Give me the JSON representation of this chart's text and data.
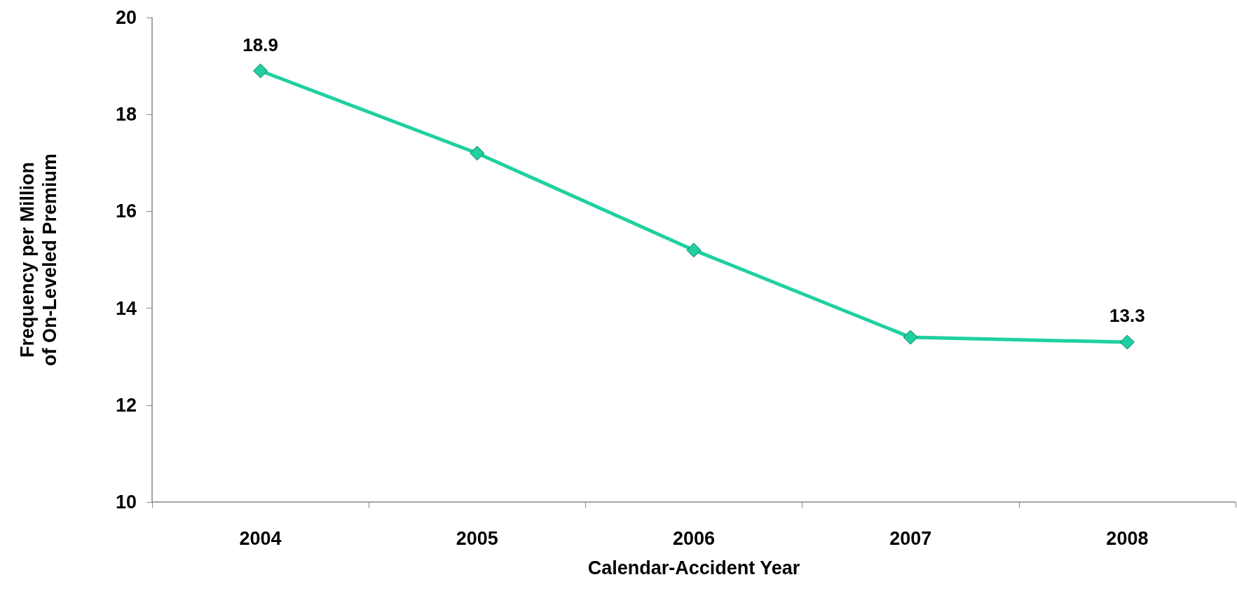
{
  "chart_data": {
    "type": "line",
    "xlabel": "Calendar-Accident Year",
    "ylabel": "Frequency per Million\nof On-Leveled Premium",
    "categories": [
      "2004",
      "2005",
      "2006",
      "2007",
      "2008"
    ],
    "series": [
      {
        "color": "#1fd0a0",
        "values": [
          18.9,
          17.2,
          15.2,
          13.4,
          13.3
        ],
        "value_labels": [
          "18.9",
          null,
          null,
          null,
          "13.3"
        ]
      }
    ],
    "ylim": [
      10,
      20
    ],
    "yticks": [
      10,
      12,
      14,
      16,
      18,
      20
    ],
    "grid": false,
    "marker": "diamond",
    "line_style": "solid"
  }
}
